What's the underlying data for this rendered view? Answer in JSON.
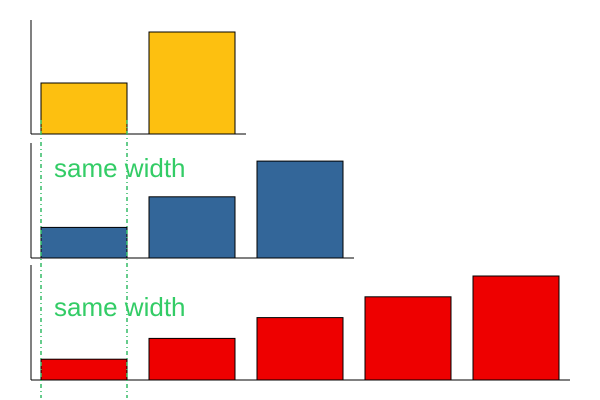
{
  "chart_data": [
    {
      "type": "bar",
      "series": [
        {
          "values": [
            5,
            10
          ],
          "color": "#fdc010"
        }
      ]
    },
    {
      "type": "bar",
      "series": [
        {
          "values": [
            3,
            6,
            9.5
          ],
          "color": "#336699"
        }
      ]
    },
    {
      "type": "bar",
      "series": [
        {
          "values": [
            2,
            4,
            6,
            8,
            10
          ],
          "color": "#ee0000"
        }
      ]
    }
  ],
  "annotations": [
    {
      "text": "same width",
      "panel": 1,
      "color": "#33cc66"
    },
    {
      "text": "same width",
      "panel": 2,
      "color": "#33cc66"
    }
  ],
  "guide_color": "#33bb66",
  "grid": false
}
